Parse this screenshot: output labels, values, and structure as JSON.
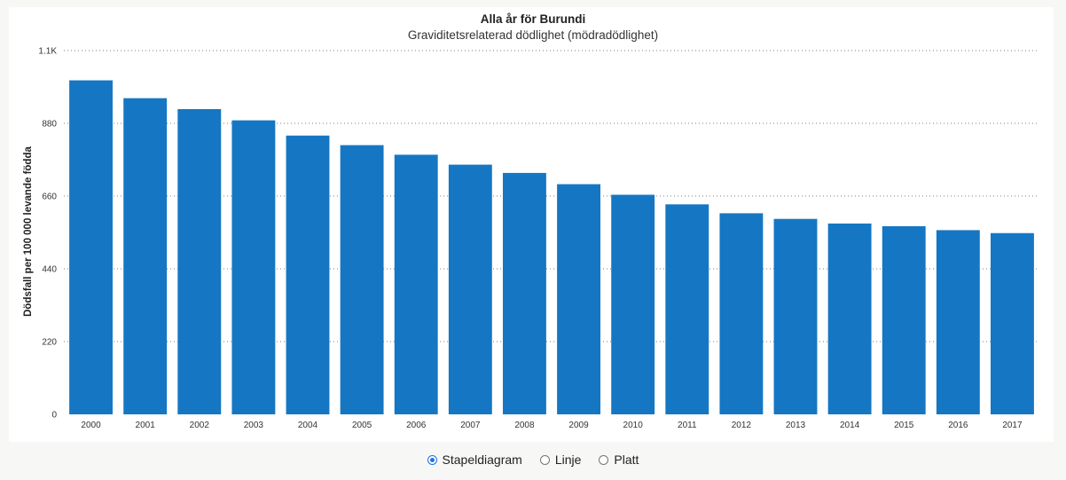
{
  "chart_data": {
    "type": "bar",
    "title": "Alla år för Burundi",
    "subtitle": "Graviditetsrelaterad dödlighet (mödradödlighet)",
    "xlabel": "",
    "ylabel": "Dödsfall per 100 000 levande födda",
    "categories": [
      "2000",
      "2001",
      "2002",
      "2003",
      "2004",
      "2005",
      "2006",
      "2007",
      "2008",
      "2009",
      "2010",
      "2011",
      "2012",
      "2013",
      "2014",
      "2015",
      "2016",
      "2017"
    ],
    "values": [
      1010,
      956,
      923,
      889,
      843,
      814,
      785,
      755,
      730,
      696,
      664,
      635,
      608,
      591,
      577,
      569,
      557,
      548
    ],
    "ylim": [
      0,
      1100
    ],
    "yticks": [
      0,
      220,
      440,
      660,
      880,
      1100
    ],
    "ytick_labels": [
      "0",
      "220",
      "440",
      "660",
      "880",
      "1.1K"
    ],
    "grid": true,
    "bar_color": "#1577c3"
  },
  "controls": {
    "options": [
      {
        "label": "Stapeldiagram",
        "selected": true
      },
      {
        "label": "Linje",
        "selected": false
      },
      {
        "label": "Platt",
        "selected": false
      }
    ]
  }
}
